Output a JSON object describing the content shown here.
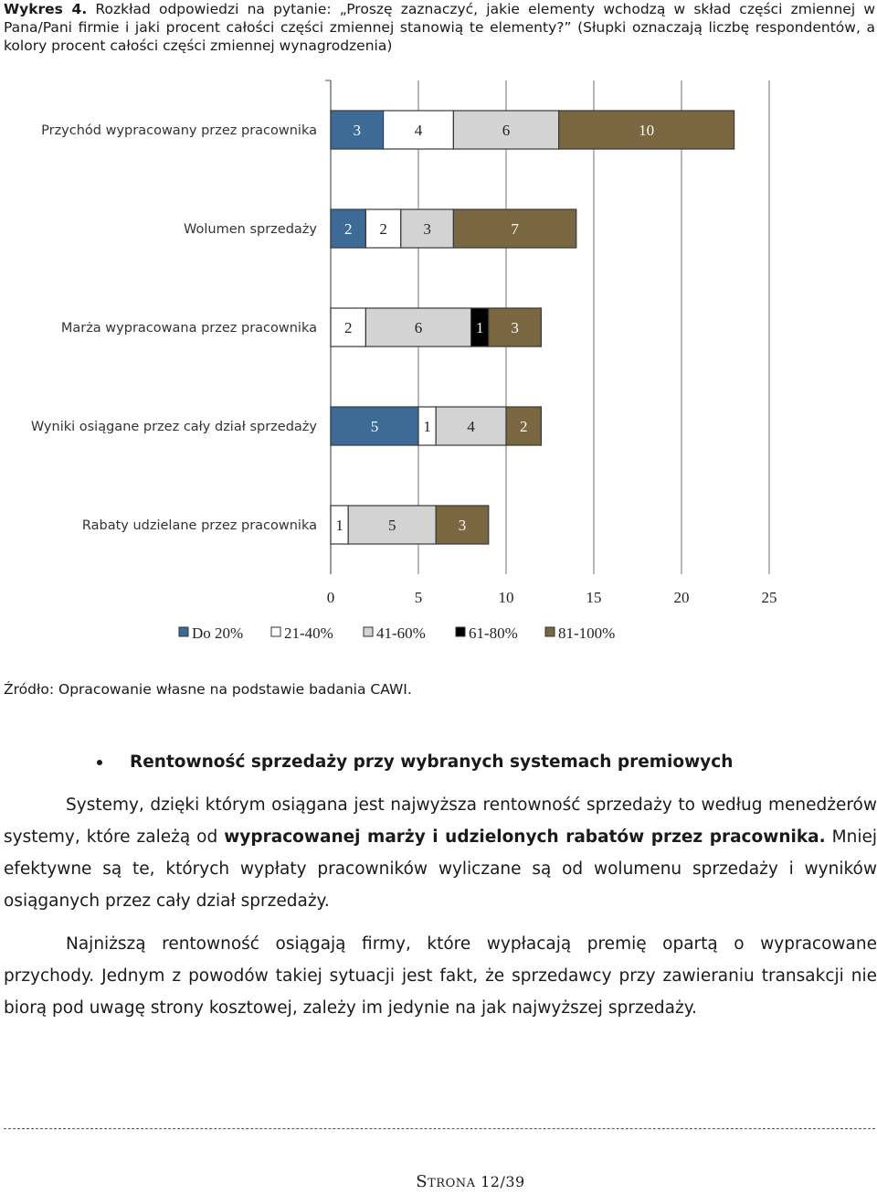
{
  "caption": {
    "label": "Wykres 4.",
    "text": "Rozkład odpowiedzi na pytanie: „Proszę zaznaczyć, jakie elementy wchodzą w skład części zmiennej w Pana/Pani firmie i jaki procent całości części zmiennej stanowią te elementy?” (Słupki oznaczają liczbę respondentów, a kolory procent całości części zmiennej wynagrodzenia)"
  },
  "chart_data": {
    "type": "bar",
    "orientation": "horizontal",
    "stacked": true,
    "categories": [
      "Przychód wypracowany przez pracownika",
      "Wolumen sprzedaży",
      "Marża wypracowana przez pracownika",
      "Wyniki osiągane przez cały dział sprzedaży",
      "Rabaty udzielane przez pracownika"
    ],
    "series": [
      {
        "name": "Do 20%",
        "color": "#3d6a96",
        "values": [
          3,
          2,
          0,
          5,
          0
        ]
      },
      {
        "name": "21-40%",
        "color": "#ffffff",
        "values": [
          4,
          2,
          2,
          1,
          1
        ]
      },
      {
        "name": "41-60%",
        "color": "#d3d3d3",
        "values": [
          6,
          3,
          6,
          4,
          5
        ]
      },
      {
        "name": "61-80%",
        "color": "#000000",
        "values": [
          0,
          0,
          1,
          0,
          0
        ]
      },
      {
        "name": "81-100%",
        "color": "#7a6641",
        "values": [
          10,
          7,
          3,
          2,
          3
        ]
      }
    ],
    "xlim": [
      0,
      25
    ],
    "x_ticks": [
      "0",
      "5",
      "10",
      "15",
      "20",
      "25"
    ],
    "grid": true,
    "legend_position": "bottom"
  },
  "source": "Źródło: Opracowanie własne na podstawie badania CAWI.",
  "section": {
    "title": "Rentowność sprzedaży przy wybranych systemach premiowych"
  },
  "paragraph1": {
    "part1": "Systemy, dzięki którym osiągana jest najwyższa rentowność sprzedaży to według menedżerów systemy, które zależą od ",
    "bold": "wypracowanej marży i udzielonych rabatów przez pracownika.",
    "part2": " Mniej efektywne są te, których wypłaty pracowników wyliczane są od wolumenu sprzedaży i wyników osiąganych przez cały dział sprzedaży."
  },
  "paragraph2": "Najniższą rentowność osiągają firmy, które wypłacają premię opartą o wypracowane przychody. Jednym z powodów takiej sytuacji jest fakt, że sprzedawcy przy zawieraniu transakcji nie biorą pod uwagę strony kosztowej, zależy im jedynie na jak najwyższej sprzedaży.",
  "footer": {
    "s": "S",
    "trona": "TRONA",
    "page": "12/39"
  }
}
